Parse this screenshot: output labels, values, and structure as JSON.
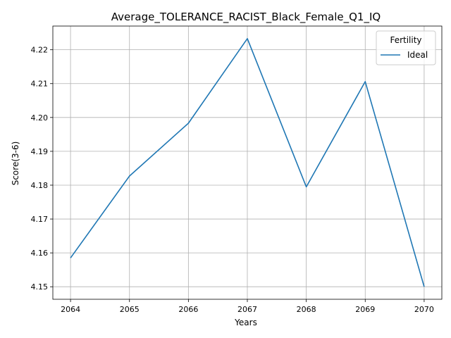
{
  "chart_data": {
    "type": "line",
    "title": "Average_TOLERANCE_RACIST_Black_Female_Q1_IQ",
    "xlabel": "Years",
    "ylabel": "Score(3-6)",
    "x": [
      2064,
      2065,
      2066,
      2067,
      2068,
      2069,
      2070
    ],
    "series": [
      {
        "name": "Ideal",
        "color": "#1f77b4",
        "values": [
          4.1585,
          4.1827,
          4.1983,
          4.2233,
          4.1795,
          4.2106,
          4.15
        ]
      }
    ],
    "xlim": [
      2063.7,
      2070.3
    ],
    "ylim": [
      4.1463,
      4.227
    ],
    "xticks": [
      2064,
      2065,
      2066,
      2067,
      2068,
      2069,
      2070
    ],
    "yticks": [
      4.15,
      4.16,
      4.17,
      4.18,
      4.19,
      4.2,
      4.21,
      4.22
    ],
    "ytick_labels": [
      "4.15",
      "4.16",
      "4.17",
      "4.18",
      "4.19",
      "4.20",
      "4.21",
      "4.22"
    ],
    "grid": true,
    "legend": {
      "title": "Fertility",
      "placement": "top-right"
    }
  }
}
